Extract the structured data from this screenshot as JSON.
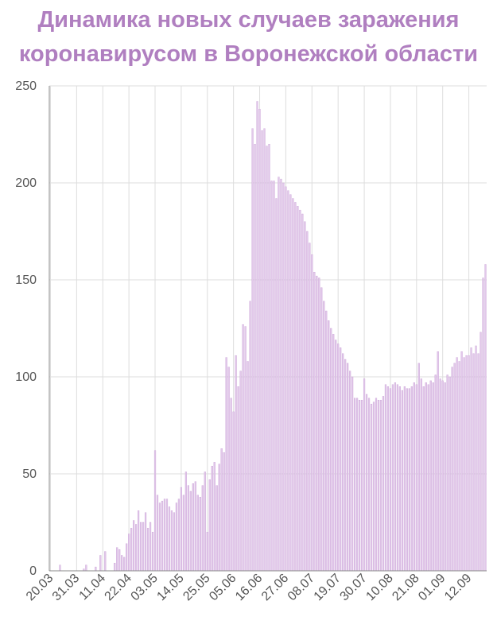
{
  "chart_data": {
    "type": "bar",
    "title_lines": [
      "Динамика новых случаев заражения",
      "коронавирусом в Воронежской области"
    ],
    "xlabel": "",
    "ylabel": "",
    "ylim": [
      0,
      250
    ],
    "yticks": [
      0,
      50,
      100,
      150,
      200,
      250
    ],
    "grid": true,
    "bar_color": "#e2c8ea",
    "bar_edge_color": "#c9a2d6",
    "title_color": "#b07fc0",
    "start_date": "20.03",
    "end_date": "19.09",
    "xtick_labels": [
      "20.03",
      "31.03",
      "11.04",
      "22.04",
      "03.05",
      "14.05",
      "25.05",
      "05.06",
      "16.06",
      "27.06",
      "08.07",
      "19.07",
      "30.07",
      "10.08",
      "21.08",
      "01.09",
      "12.09"
    ],
    "values": [
      0,
      0,
      0,
      0,
      3,
      0,
      0,
      0,
      0,
      0,
      0,
      0,
      0,
      0,
      1,
      3,
      0,
      0,
      0,
      2,
      0,
      8,
      0,
      10,
      0,
      0,
      0,
      4,
      12,
      11,
      8,
      7,
      14,
      19,
      22,
      26,
      24,
      31,
      25,
      25,
      30,
      22,
      25,
      20,
      62,
      39,
      35,
      36,
      37,
      37,
      33,
      31,
      30,
      35,
      37,
      43,
      39,
      51,
      44,
      41,
      45,
      46,
      39,
      38,
      44,
      51,
      20,
      47,
      54,
      56,
      44,
      55,
      63,
      61,
      110,
      105,
      89,
      82,
      111,
      95,
      103,
      127,
      126,
      108,
      139,
      228,
      220,
      242,
      238,
      227,
      228,
      219,
      220,
      201,
      201,
      192,
      203,
      202,
      200,
      198,
      196,
      194,
      192,
      190,
      188,
      186,
      184,
      180,
      175,
      169,
      163,
      154,
      152,
      151,
      146,
      139,
      134,
      129,
      125,
      122,
      119,
      117,
      115,
      112,
      109,
      107,
      103,
      100,
      89,
      89,
      88,
      88,
      99,
      91,
      89,
      86,
      87,
      89,
      88,
      88,
      90,
      96,
      95,
      94,
      96,
      97,
      96,
      95,
      93,
      95,
      94,
      94,
      95,
      97,
      96,
      107,
      99,
      95,
      97,
      96,
      98,
      97,
      101,
      113,
      99,
      98,
      97,
      101,
      100,
      105,
      107,
      110,
      108,
      113,
      110,
      111,
      111,
      115,
      112,
      116,
      112,
      123,
      151,
      158
    ]
  }
}
